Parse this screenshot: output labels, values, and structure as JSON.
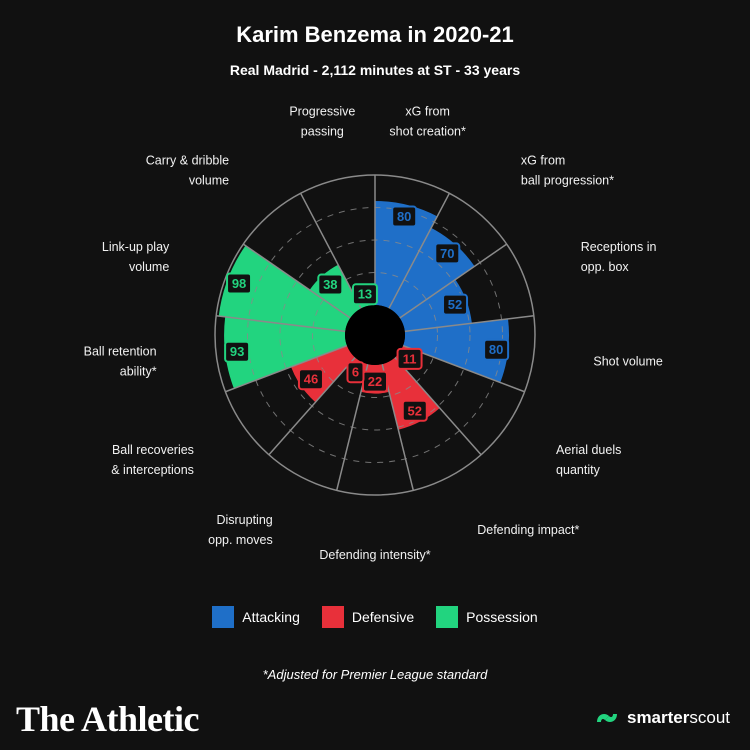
{
  "colors": {
    "background": "#111111",
    "attacking": "#1f6fc8",
    "defensive": "#e8303a",
    "possession": "#22d47f",
    "grid": "#8a8a8a",
    "brand_green": "#22d47f"
  },
  "legend": {
    "items": [
      {
        "label": "Attacking",
        "color": "#1f6fc8"
      },
      {
        "label": "Defensive",
        "color": "#e8303a"
      },
      {
        "label": "Possession",
        "color": "#22d47f"
      }
    ]
  },
  "footnote": "*Adjusted for Premier League standard",
  "branding": {
    "publisher": "The Athletic",
    "partner_bold": "smarter",
    "partner_light": "scout",
    "partner_icon": "smarterscout-logo-icon"
  },
  "chart_data": {
    "type": "radar",
    "title": "Karim Benzema in 2020-21",
    "subtitle": "Real Madrid - 2,112 minutes at ST - 33 years",
    "rlim": [
      0,
      100
    ],
    "grid": true,
    "legend_position": "bottom",
    "categories": [
      {
        "label": [
          "xG from",
          "shot creation*"
        ],
        "value": 80,
        "group": "Attacking"
      },
      {
        "label": [
          "xG from",
          "ball progression*"
        ],
        "value": 70,
        "group": "Attacking"
      },
      {
        "label": [
          "Receptions in",
          "opp. box"
        ],
        "value": 52,
        "group": "Attacking"
      },
      {
        "label": [
          "Shot volume"
        ],
        "value": 80,
        "group": "Attacking"
      },
      {
        "label": [
          "Aerial duels",
          "quantity"
        ],
        "value": 11,
        "group": "Defensive"
      },
      {
        "label": [
          "Defending impact*"
        ],
        "value": 52,
        "group": "Defensive"
      },
      {
        "label": [
          "Defending intensity*"
        ],
        "value": 22,
        "group": "Defensive"
      },
      {
        "label": [
          "Disrupting",
          "opp. moves"
        ],
        "value": 6,
        "group": "Defensive"
      },
      {
        "label": [
          "Ball recoveries",
          "& interceptions"
        ],
        "value": 46,
        "group": "Defensive"
      },
      {
        "label": [
          "Ball retention",
          "ability*"
        ],
        "value": 93,
        "group": "Possession"
      },
      {
        "label": [
          "Link-up play",
          "volume"
        ],
        "value": 98,
        "group": "Possession"
      },
      {
        "label": [
          "Carry & dribble",
          "volume"
        ],
        "value": 38,
        "group": "Possession"
      },
      {
        "label": [
          "Progressive",
          "passing"
        ],
        "value": 13,
        "group": "Possession"
      }
    ]
  }
}
